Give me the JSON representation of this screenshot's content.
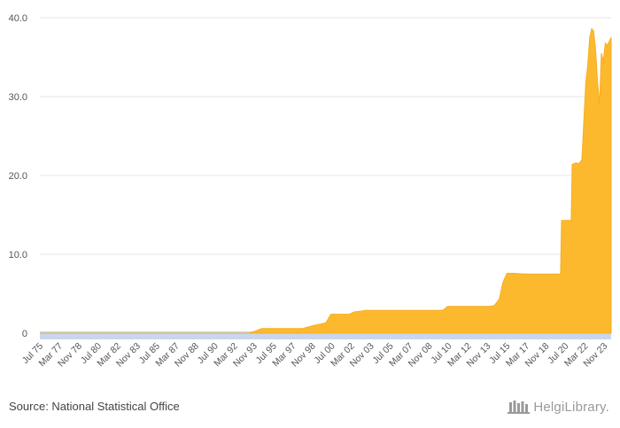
{
  "source_text": "Source: National Statistical Office",
  "brand_text": "HelgiLibrary.",
  "colors": {
    "area": "#FDB92E",
    "area_stroke": "#F5AE20",
    "xband": "#C9D6EE",
    "grid": "#E6E6E6",
    "axis_text": "#555555"
  },
  "chart_data": {
    "type": "area",
    "title": "",
    "xlabel": "",
    "ylabel": "",
    "ylim": [
      0,
      40
    ],
    "yticks": [
      0,
      10.0,
      20.0,
      30.0,
      40.0
    ],
    "ytick_labels": [
      "0",
      "10.0",
      "20.0",
      "30.0",
      "40.0"
    ],
    "x_start": "Jul 75",
    "x_end": "Jun 24",
    "grid": true,
    "legend": "none",
    "xtick_labels": [
      "Jul 75",
      "Mar 77",
      "Nov 78",
      "Jul 80",
      "Mar 82",
      "Nov 83",
      "Jul 85",
      "Mar 87",
      "Nov 88",
      "Jul 90",
      "Mar 92",
      "Nov 93",
      "Jul 95",
      "Mar 97",
      "Nov 98",
      "Jul 00",
      "Mar 02",
      "Nov 03",
      "Jul 05",
      "Mar 07",
      "Nov 08",
      "Jul 10",
      "Mar 12",
      "Nov 13",
      "Jul 15",
      "Mar 17",
      "Nov 18",
      "Jul 20",
      "Mar 22",
      "Nov 23"
    ],
    "series": [
      {
        "points": [
          [
            "Jul 75",
            0.0
          ],
          [
            "Jun 93",
            0.0
          ],
          [
            "Jan 94",
            0.3
          ],
          [
            "Jul 94",
            0.6
          ],
          [
            "Jan 95",
            0.6
          ],
          [
            "Jul 95",
            0.6
          ],
          [
            "Jan 98",
            0.6
          ],
          [
            "Jan 99",
            1.0
          ],
          [
            "Jan 00",
            1.3
          ],
          [
            "Jun 00",
            2.4
          ],
          [
            "Jan 02",
            2.4
          ],
          [
            "Jun 02",
            2.7
          ],
          [
            "Jan 03",
            2.8
          ],
          [
            "Jun 03",
            2.9
          ],
          [
            "Jan 05",
            2.9
          ],
          [
            "Jan 08",
            2.9
          ],
          [
            "Jan 10",
            2.9
          ],
          [
            "Jun 10",
            3.4
          ],
          [
            "Jan 12",
            3.4
          ],
          [
            "Jan 14",
            3.4
          ],
          [
            "Jun 14",
            3.5
          ],
          [
            "Nov 14",
            4.3
          ],
          [
            "Mar 15",
            6.5
          ],
          [
            "Jul 15",
            7.6
          ],
          [
            "Jan 16",
            7.6
          ],
          [
            "Jan 17",
            7.5
          ],
          [
            "Jan 18",
            7.5
          ],
          [
            "Jan 19",
            7.5
          ],
          [
            "Feb 20",
            7.5
          ],
          [
            "Mar 20",
            14.3
          ],
          [
            "Jan 21",
            14.3
          ],
          [
            "Feb 21",
            21.4
          ],
          [
            "Jun 21",
            21.6
          ],
          [
            "Sep 21",
            21.5
          ],
          [
            "Dec 21",
            22.0
          ],
          [
            "Feb 22",
            27.0
          ],
          [
            "Apr 22",
            31.8
          ],
          [
            "Jun 22",
            34.0
          ],
          [
            "Aug 22",
            37.5
          ],
          [
            "Oct 22",
            38.6
          ],
          [
            "Dec 22",
            38.3
          ],
          [
            "Feb 23",
            36.0
          ],
          [
            "Apr 23",
            32.0
          ],
          [
            "Jun 23",
            29.0
          ],
          [
            "Aug 23",
            35.5
          ],
          [
            "Oct 23",
            34.5
          ],
          [
            "Dec 23",
            36.8
          ],
          [
            "Feb 24",
            36.5
          ],
          [
            "Apr 24",
            37.0
          ],
          [
            "Jun 24",
            37.5
          ]
        ]
      }
    ]
  }
}
